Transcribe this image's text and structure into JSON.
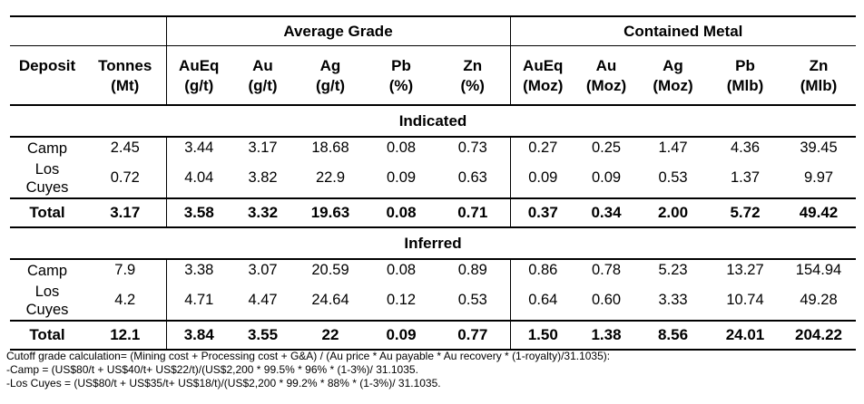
{
  "headers": {
    "group_grade": "Average Grade",
    "group_metal": "Contained Metal",
    "columns": [
      {
        "name": "Deposit",
        "unit": ""
      },
      {
        "name": "Tonnes",
        "unit": "(Mt)"
      },
      {
        "name": "AuEq",
        "unit": "(g/t)"
      },
      {
        "name": "Au",
        "unit": "(g/t)"
      },
      {
        "name": "Ag",
        "unit": "(g/t)"
      },
      {
        "name": "Pb",
        "unit": "(%)"
      },
      {
        "name": "Zn",
        "unit": "(%)"
      },
      {
        "name": "AuEq",
        "unit": "(Moz)"
      },
      {
        "name": "Au",
        "unit": "(Moz)"
      },
      {
        "name": "Ag",
        "unit": "(Moz)"
      },
      {
        "name": "Pb",
        "unit": "(Mlb)"
      },
      {
        "name": "Zn",
        "unit": "(Mlb)"
      }
    ]
  },
  "sections": [
    {
      "title": "Indicated",
      "rows": [
        {
          "deposit": [
            "Camp"
          ],
          "values": [
            "2.45",
            "3.44",
            "3.17",
            "18.68",
            "0.08",
            "0.73",
            "0.27",
            "0.25",
            "1.47",
            "4.36",
            "39.45"
          ]
        },
        {
          "deposit": [
            "Los",
            "Cuyes"
          ],
          "values": [
            "0.72",
            "4.04",
            "3.82",
            "22.9",
            "0.09",
            "0.63",
            "0.09",
            "0.09",
            "0.53",
            "1.37",
            "9.97"
          ]
        }
      ],
      "total": {
        "label": "Total",
        "values": [
          "3.17",
          "3.58",
          "3.32",
          "19.63",
          "0.08",
          "0.71",
          "0.37",
          "0.34",
          "2.00",
          "5.72",
          "49.42"
        ]
      }
    },
    {
      "title": "Inferred",
      "rows": [
        {
          "deposit": [
            "Camp"
          ],
          "values": [
            "7.9",
            "3.38",
            "3.07",
            "20.59",
            "0.08",
            "0.89",
            "0.86",
            "0.78",
            "5.23",
            "13.27",
            "154.94"
          ]
        },
        {
          "deposit": [
            "Los",
            "Cuyes"
          ],
          "values": [
            "4.2",
            "4.71",
            "4.47",
            "24.64",
            "0.12",
            "0.53",
            "0.64",
            "0.60",
            "3.33",
            "10.74",
            "49.28"
          ]
        }
      ],
      "total": {
        "label": "Total",
        "values": [
          "12.1",
          "3.84",
          "3.55",
          "22",
          "0.09",
          "0.77",
          "1.50",
          "1.38",
          "8.56",
          "24.01",
          "204.22"
        ]
      }
    }
  ],
  "notes": [
    "Cutoff grade calculation= (Mining cost + Processing cost + G&A) / (Au price * Au payable * Au recovery * (1-royalty)/31.1035):",
    "-Camp = (US$80/t + US$40/t+ US$22/t)/(US$2,200 * 99.5% * 96% * (1-3%)/ 31.1035.",
    "-Los Cuyes = (US$80/t + US$35/t+ US$18/t)/(US$2,200 * 99.2% * 88% * (1-3%)/ 31.1035."
  ]
}
